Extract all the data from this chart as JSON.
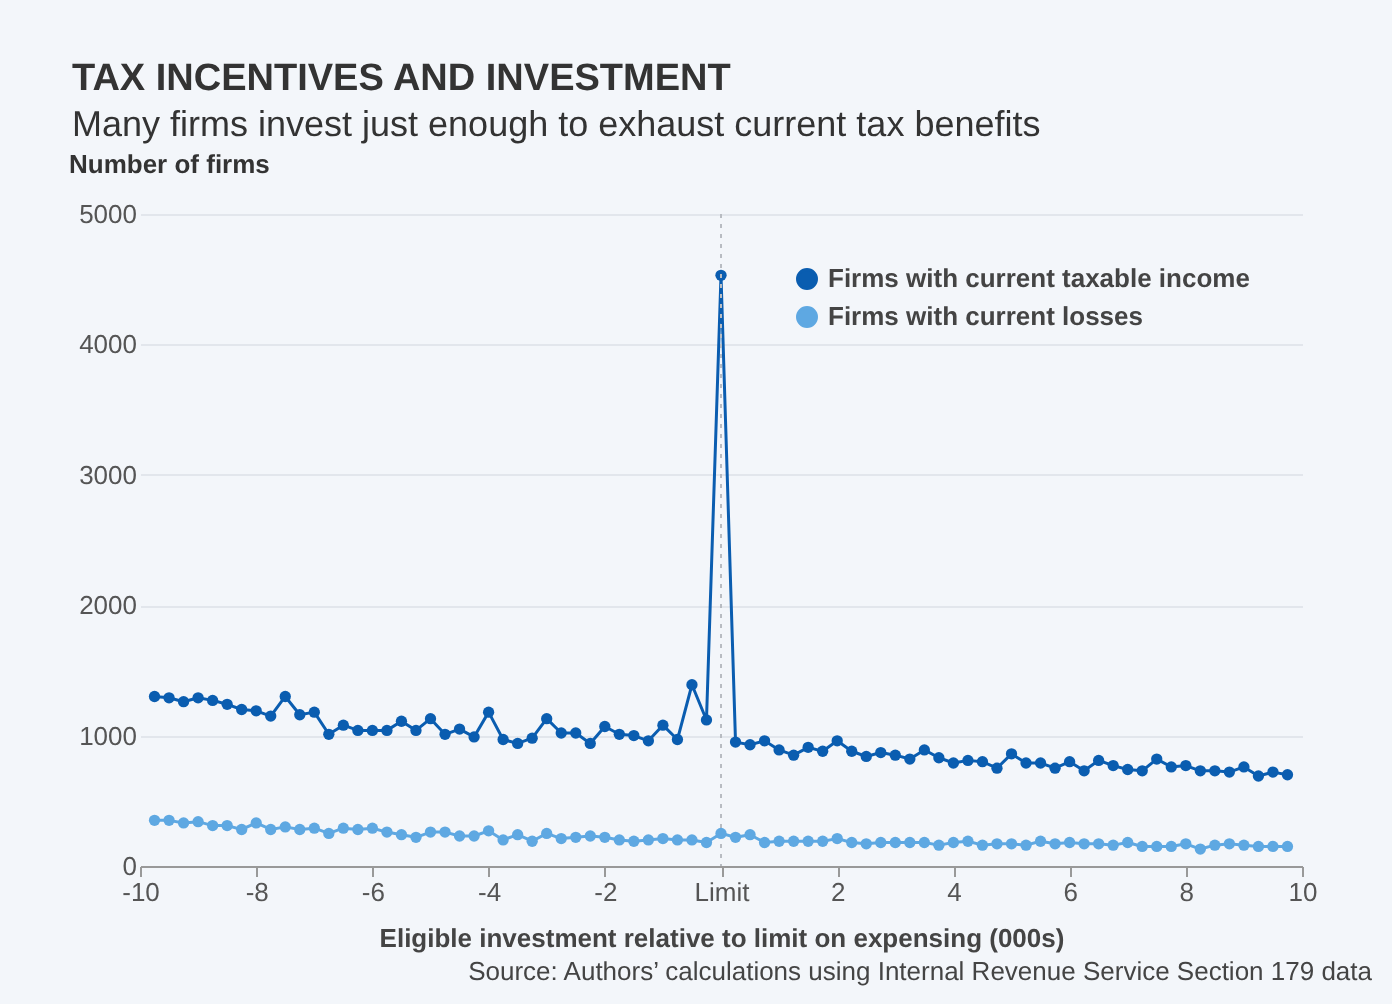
{
  "chart_data": {
    "type": "line",
    "title": "TAX INCENTIVES AND INVESTMENT",
    "subtitle": "Many firms invest just enough to exhaust current tax benefits",
    "ylabel": "Number of firms",
    "xlabel": "Eligible investment relative to limit on expensing (000s)",
    "annotations": [
      "Source: Authors’ calculations using Internal Revenue Service Section 179 data"
    ],
    "x": [
      -9.75,
      -9.5,
      -9.25,
      -9,
      -8.75,
      -8.5,
      -8.25,
      -8,
      -7.75,
      -7.5,
      -7.25,
      -7,
      -6.75,
      -6.5,
      -6.25,
      -6,
      -5.75,
      -5.5,
      -5.25,
      -5,
      -4.75,
      -4.5,
      -4.25,
      -4,
      -3.75,
      -3.5,
      -3.25,
      -3,
      -2.75,
      -2.5,
      -2.25,
      -2,
      -1.75,
      -1.5,
      -1.25,
      -1,
      -0.75,
      -0.5,
      -0.25,
      0,
      0.25,
      0.5,
      0.75,
      1,
      1.25,
      1.5,
      1.75,
      2,
      2.25,
      2.5,
      2.75,
      3,
      3.25,
      3.5,
      3.75,
      4,
      4.25,
      4.5,
      4.75,
      5,
      5.25,
      5.5,
      5.75,
      6,
      6.25,
      6.5,
      6.75,
      7,
      7.25,
      7.5,
      7.75,
      8,
      8.25,
      8.5,
      8.75,
      9,
      9.25,
      9.5,
      9.75
    ],
    "series": [
      {
        "name": "Firms with current taxable income",
        "color": "#0a5db0",
        "values": [
          1300,
          1290,
          1260,
          1290,
          1270,
          1240,
          1200,
          1190,
          1150,
          1300,
          1160,
          1180,
          1010,
          1080,
          1040,
          1040,
          1040,
          1110,
          1040,
          1130,
          1010,
          1050,
          990,
          1180,
          970,
          940,
          980,
          1130,
          1020,
          1020,
          940,
          1070,
          1010,
          1000,
          960,
          1080,
          970,
          1390,
          1120,
          4530,
          950,
          930,
          960,
          890,
          850,
          910,
          880,
          960,
          880,
          840,
          870,
          850,
          820,
          890,
          830,
          790,
          810,
          800,
          750,
          860,
          790,
          790,
          750,
          800,
          730,
          810,
          770,
          740,
          730,
          820,
          760,
          770,
          730,
          730,
          720,
          760,
          690,
          720,
          700
        ]
      },
      {
        "name": "Firms with current losses",
        "color": "#5ea8e2",
        "values": [
          350,
          350,
          330,
          340,
          310,
          310,
          280,
          330,
          280,
          300,
          280,
          290,
          250,
          290,
          280,
          290,
          260,
          240,
          220,
          260,
          260,
          230,
          230,
          270,
          200,
          240,
          190,
          250,
          210,
          220,
          230,
          220,
          200,
          190,
          200,
          210,
          200,
          200,
          180,
          250,
          220,
          240,
          180,
          190,
          190,
          190,
          190,
          210,
          180,
          170,
          180,
          180,
          180,
          180,
          160,
          180,
          190,
          160,
          170,
          170,
          160,
          190,
          170,
          180,
          170,
          170,
          160,
          180,
          150,
          150,
          150,
          170,
          130,
          160,
          170,
          160,
          150,
          150,
          150
        ]
      }
    ],
    "xlim": [
      -10,
      10
    ],
    "xticks": [
      -10,
      -8,
      -6,
      -4,
      -2,
      {
        "value": 0,
        "label": "Limit"
      },
      2,
      4,
      6,
      8,
      10
    ],
    "ylim": [
      0,
      5000
    ],
    "yticks": [
      0,
      1000,
      2000,
      3000,
      4000,
      5000
    ],
    "ref_lines": [
      {
        "axis": "x",
        "value": 0,
        "color": "#b8bcc2",
        "line_style": "dotted"
      }
    ],
    "grid": "y",
    "legend": "top right",
    "marker": "circle"
  }
}
